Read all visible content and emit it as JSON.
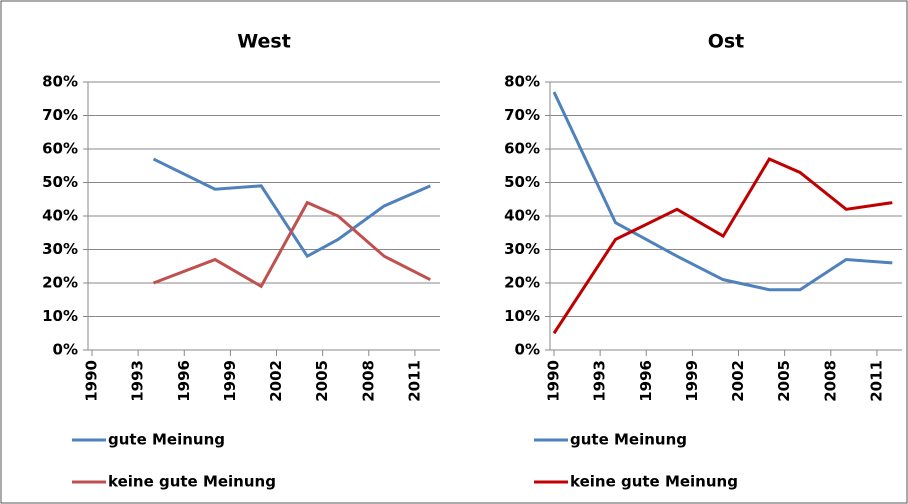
{
  "chart_data": [
    {
      "type": "line",
      "title": "West",
      "x": [
        1994,
        1998,
        2001,
        2004,
        2006,
        2009,
        2012
      ],
      "series": [
        {
          "name": "gute Meinung",
          "color": "#4f81bd",
          "values": [
            57,
            48,
            49,
            28,
            33,
            43,
            49
          ]
        },
        {
          "name": "keine gute Meinung",
          "color": "#c0504d",
          "values": [
            20,
            27,
            19,
            44,
            40,
            28,
            21
          ]
        }
      ],
      "xlim": [
        1990,
        2012.5
      ],
      "xticks": [
        1990,
        1993,
        1996,
        1999,
        2002,
        2005,
        2008,
        2011
      ],
      "ylim": [
        0,
        80
      ],
      "yticks": [
        {
          "value": 0,
          "label": "0%"
        },
        {
          "value": 10,
          "label": "10%"
        },
        {
          "value": 20,
          "label": "20%"
        },
        {
          "value": 30,
          "label": "30%"
        },
        {
          "value": 40,
          "label": "40%"
        },
        {
          "value": 50,
          "label": "50%"
        },
        {
          "value": 60,
          "label": "60%"
        },
        {
          "value": 70,
          "label": "70%"
        },
        {
          "value": 80,
          "label": "80%"
        }
      ],
      "grid": true
    },
    {
      "type": "line",
      "title": "Ost",
      "x": [
        1990,
        1994,
        1998,
        2001,
        2004,
        2006,
        2009,
        2012
      ],
      "series": [
        {
          "name": "gute Meinung",
          "color": "#4f81bd",
          "values": [
            77,
            38,
            28,
            21,
            18,
            18,
            27,
            26
          ]
        },
        {
          "name": "keine gute Meinung",
          "color": "#c00000",
          "values": [
            5,
            33,
            42,
            34,
            57,
            53,
            42,
            44
          ]
        }
      ],
      "xlim": [
        1990,
        2012.5
      ],
      "xticks": [
        1990,
        1993,
        1996,
        1999,
        2002,
        2005,
        2008,
        2011
      ],
      "ylim": [
        0,
        80
      ],
      "yticks": [
        {
          "value": 0,
          "label": "0%"
        },
        {
          "value": 10,
          "label": "10%"
        },
        {
          "value": 20,
          "label": "20%"
        },
        {
          "value": 30,
          "label": "30%"
        },
        {
          "value": 40,
          "label": "40%"
        },
        {
          "value": 50,
          "label": "50%"
        },
        {
          "value": 60,
          "label": "60%"
        },
        {
          "value": 70,
          "label": "70%"
        },
        {
          "value": 80,
          "label": "80%"
        }
      ],
      "grid": true
    }
  ]
}
